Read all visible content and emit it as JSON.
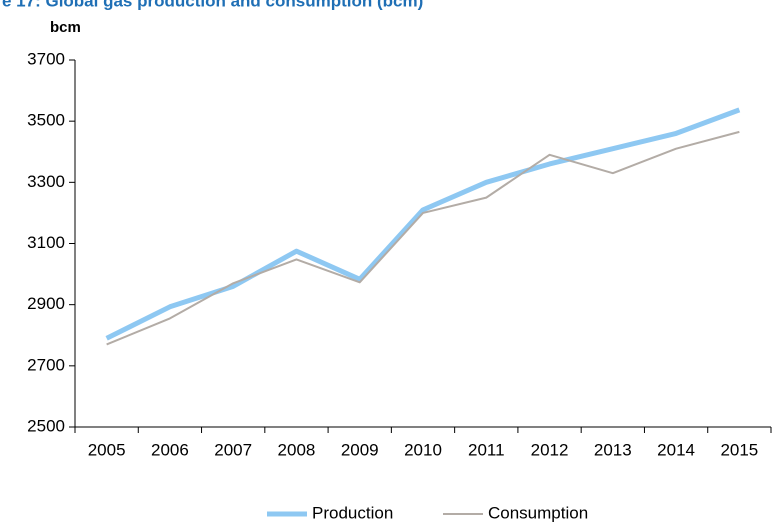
{
  "chart_data": {
    "type": "line",
    "title": "e 17: Global gas production and consumption (bcm)",
    "y_label": "bcm",
    "categories": [
      "2005",
      "2006",
      "2007",
      "2008",
      "2009",
      "2010",
      "2011",
      "2012",
      "2013",
      "2014",
      "2015"
    ],
    "series": [
      {
        "name": "Production",
        "color": "#8ec8f2",
        "values": [
          2790,
          2893,
          2960,
          3075,
          2983,
          3210,
          3300,
          3360,
          3410,
          3460,
          3537
        ]
      },
      {
        "name": "Consumption",
        "color": "#b3aca6",
        "values": [
          2770,
          2855,
          2970,
          3048,
          2973,
          3200,
          3250,
          3390,
          3330,
          3410,
          3465
        ]
      }
    ],
    "ylim": [
      2500,
      3700
    ],
    "yticks": [
      2500,
      2700,
      2900,
      3100,
      3300,
      3500,
      3700
    ],
    "grid": false,
    "legend": "bottom"
  }
}
